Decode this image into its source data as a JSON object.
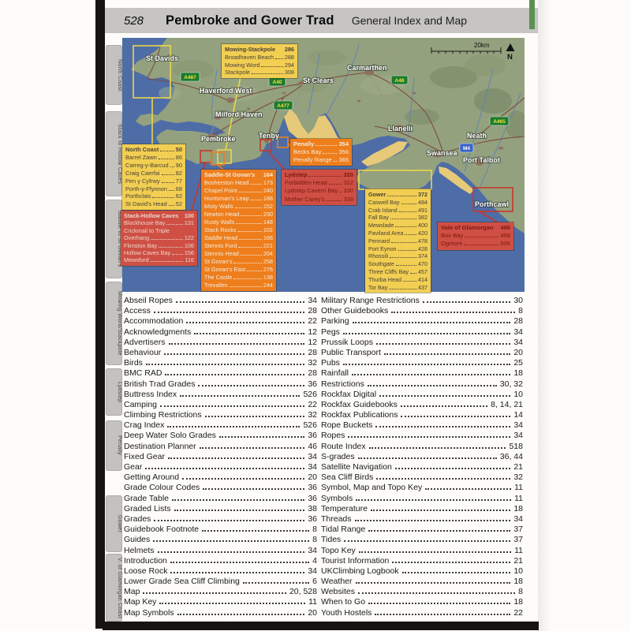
{
  "page": {
    "number": "528",
    "title": "Pembroke and Gower Trad",
    "subtitle": "General Index and Map"
  },
  "sidebar": {
    "tabs": [
      {
        "label": "North Coast"
      },
      {
        "label": "Stack to Hollow Caves"
      },
      {
        "label": "Saddle to St Govan's"
      },
      {
        "label": "Mowing Word/Stackpole"
      },
      {
        "label": "Lydstep"
      },
      {
        "label": "Penally"
      },
      {
        "label": "Gower"
      },
      {
        "label": "V. of Glamorgan Coast"
      }
    ]
  },
  "map": {
    "scale_label": "20km",
    "north_label": "N",
    "colors": {
      "sea": "#4e6da6",
      "land": "#93a17e",
      "sand": "#e6c979",
      "yellow_box": "#f2ce52",
      "orange_box": "#ee7e1c",
      "red_box": "#cf4f44"
    },
    "towns": [
      {
        "name": "St Davids"
      },
      {
        "name": "Haverford West"
      },
      {
        "name": "Milford Haven"
      },
      {
        "name": "Pembroke"
      },
      {
        "name": "Tenby"
      },
      {
        "name": "St Clears"
      },
      {
        "name": "Carmarthen"
      },
      {
        "name": "Llanelli"
      },
      {
        "name": "Swansea"
      },
      {
        "name": "Neath"
      },
      {
        "name": "Port Talbot"
      },
      {
        "name": "Porthcawl"
      }
    ],
    "road_signs": [
      {
        "label": "A487"
      },
      {
        "label": "A40"
      },
      {
        "label": "A477"
      },
      {
        "label": "A48"
      },
      {
        "label": "A465"
      },
      {
        "label": "M4"
      }
    ],
    "boxes": [
      {
        "title": "Mowing-Stackpole",
        "page": "286",
        "entries": [
          {
            "name": "Broadhaven Beach",
            "page": "288"
          },
          {
            "name": "Mowing Word",
            "page": "294"
          },
          {
            "name": "Stackpole",
            "page": "308"
          }
        ]
      },
      {
        "title": "North Coast",
        "page": "50",
        "entries": [
          {
            "name": "Barrel Zawn",
            "page": "86"
          },
          {
            "name": "Carreg-y-Barcud",
            "page": "90"
          },
          {
            "name": "Craig Caerfai",
            "page": "82"
          },
          {
            "name": "Pen y Cyfrwy",
            "page": "77"
          },
          {
            "name": "Porth-y-Ffynnon",
            "page": "68"
          },
          {
            "name": "Porthclais",
            "page": "62"
          },
          {
            "name": "St David's Head",
            "page": "52"
          }
        ]
      },
      {
        "title": "Stack-Hollow Caves",
        "page": "100",
        "entries": [
          {
            "name": "Blockhouse Bay",
            "page": "131"
          },
          {
            "name": "Crickmail to Triple",
            "page": ""
          },
          {
            "name": "Overhang",
            "page": "122"
          },
          {
            "name": "Flimston Bay",
            "page": "106"
          },
          {
            "name": "Hollow Caves Bay",
            "page": "156"
          },
          {
            "name": "Mewsford",
            "page": "116"
          }
        ]
      },
      {
        "title": "Saddle-St Govan's",
        "page": "164",
        "entries": [
          {
            "name": "Bosherston Head",
            "page": "173"
          },
          {
            "name": "Chapel Point",
            "page": "240"
          },
          {
            "name": "Huntsman's Leap",
            "page": "188"
          },
          {
            "name": "Misty Walls",
            "page": "152"
          },
          {
            "name": "Newton Head",
            "page": "230"
          },
          {
            "name": "Rusty Walls",
            "page": "148"
          },
          {
            "name": "Stack Rocks",
            "page": "102"
          },
          {
            "name": "Saddle Head",
            "page": "166"
          },
          {
            "name": "Stennis Ford",
            "page": "221"
          },
          {
            "name": "Stennis Head",
            "page": "204"
          },
          {
            "name": "St Govan's",
            "page": "258"
          },
          {
            "name": "St Govan's East",
            "page": "276"
          },
          {
            "name": "The Castle",
            "page": "138"
          },
          {
            "name": "Trevallen",
            "page": "244"
          }
        ]
      },
      {
        "title": "Penally",
        "page": "354",
        "entries": [
          {
            "name": "Becks Bay",
            "page": "356"
          },
          {
            "name": "Penally Range",
            "page": "365"
          }
        ]
      },
      {
        "title": "Lydstep",
        "page": "320",
        "entries": [
          {
            "name": "Forbidden Head",
            "page": "322"
          },
          {
            "name": "Lydstep Cavern Bay",
            "page": "330"
          },
          {
            "name": "Mother Carey's",
            "page": "338"
          }
        ]
      },
      {
        "title": "Gower",
        "page": "372",
        "entries": [
          {
            "name": "Caswell Bay",
            "page": "484"
          },
          {
            "name": "Crab Island",
            "page": "491"
          },
          {
            "name": "Fall Bay",
            "page": "382"
          },
          {
            "name": "Mewslade",
            "page": "400"
          },
          {
            "name": "Paviland Area",
            "page": "420"
          },
          {
            "name": "Pennard",
            "page": "478"
          },
          {
            "name": "Port Eynon",
            "page": "428"
          },
          {
            "name": "Rhossili",
            "page": "374"
          },
          {
            "name": "Southgate",
            "page": "470"
          },
          {
            "name": "Three Cliffs Bay",
            "page": "457"
          },
          {
            "name": "Thurba Head",
            "page": "414"
          },
          {
            "name": "Tor Bay",
            "page": "437"
          }
        ]
      },
      {
        "title": "Vale of Glamorgan",
        "page": "496",
        "entries": [
          {
            "name": "Box Bay",
            "page": "498"
          },
          {
            "name": "Ogmore",
            "page": "506"
          }
        ]
      }
    ]
  },
  "index": {
    "left": [
      {
        "name": "Abseil Ropes",
        "page": "34"
      },
      {
        "name": "Access",
        "page": "28"
      },
      {
        "name": "Accommodation",
        "page": "22"
      },
      {
        "name": "Acknowledgments",
        "page": "12"
      },
      {
        "name": "Advertisers",
        "page": "12"
      },
      {
        "name": "Behaviour",
        "page": "28"
      },
      {
        "name": "Birds",
        "page": "32"
      },
      {
        "name": "BMC RAD",
        "page": "28"
      },
      {
        "name": "British Trad Grades",
        "page": "36"
      },
      {
        "name": "Buttress Index",
        "page": "526"
      },
      {
        "name": "Camping",
        "page": "22"
      },
      {
        "name": "Climbing Restrictions",
        "page": "32"
      },
      {
        "name": "Crag Index",
        "page": "526"
      },
      {
        "name": "Deep Water Solo Grades",
        "page": "36"
      },
      {
        "name": "Destination Planner",
        "page": "46"
      },
      {
        "name": "Fixed Gear",
        "page": "34"
      },
      {
        "name": "Gear",
        "page": "34"
      },
      {
        "name": "Getting Around",
        "page": "20"
      },
      {
        "name": "Grade Colour Codes",
        "page": "36"
      },
      {
        "name": "Grade Table",
        "page": "36"
      },
      {
        "name": "Graded Lists",
        "page": "38"
      },
      {
        "name": "Grades",
        "page": "36"
      },
      {
        "name": "Guidebook Footnote",
        "page": "8"
      },
      {
        "name": "Guides",
        "page": "8"
      },
      {
        "name": "Helmets",
        "page": "34"
      },
      {
        "name": "Introduction",
        "page": "4"
      },
      {
        "name": "Loose Rock",
        "page": "34"
      },
      {
        "name": "Lower Grade Sea Cliff Climbing",
        "page": "6"
      },
      {
        "name": "Map",
        "page": "20, 528"
      },
      {
        "name": "Map Key",
        "page": "11"
      },
      {
        "name": "Map Symbols",
        "page": "20"
      }
    ],
    "right": [
      {
        "name": "Military Range Restrictions",
        "page": "30"
      },
      {
        "name": "Other Guidebooks",
        "page": "8"
      },
      {
        "name": "Parking",
        "page": "28"
      },
      {
        "name": "Pegs",
        "page": "34"
      },
      {
        "name": "Prussik Loops",
        "page": "34"
      },
      {
        "name": "Public Transport",
        "page": "20"
      },
      {
        "name": "Pubs",
        "page": "25"
      },
      {
        "name": "Rainfall",
        "page": "18"
      },
      {
        "name": "Restrictions",
        "page": "30, 32"
      },
      {
        "name": "Rockfax Digital",
        "page": "10"
      },
      {
        "name": "Rockfax Guidebooks",
        "page": "8, 14, 21"
      },
      {
        "name": "Rockfax Publications",
        "page": "14"
      },
      {
        "name": "Rope Buckets",
        "page": "34"
      },
      {
        "name": "Ropes",
        "page": "34"
      },
      {
        "name": "Route Index",
        "page": "518"
      },
      {
        "name": "S-grades",
        "page": "36, 44"
      },
      {
        "name": "Satellite Navigation",
        "page": "21"
      },
      {
        "name": "Sea Cliff Birds",
        "page": "32"
      },
      {
        "name": "Symbol, Map and Topo Key",
        "page": "11"
      },
      {
        "name": "Symbols",
        "page": "11"
      },
      {
        "name": "Temperature",
        "page": "18"
      },
      {
        "name": "Threads",
        "page": "34"
      },
      {
        "name": "Tidal Range",
        "page": "37"
      },
      {
        "name": "Tides",
        "page": "37"
      },
      {
        "name": "Topo Key",
        "page": "11"
      },
      {
        "name": "Tourist Information",
        "page": "21"
      },
      {
        "name": "UKClimbing Logbook",
        "page": "10"
      },
      {
        "name": "Weather",
        "page": "18"
      },
      {
        "name": "Websites",
        "page": "8"
      },
      {
        "name": "When to Go",
        "page": "18"
      },
      {
        "name": "Youth Hostels",
        "page": "22"
      }
    ]
  }
}
